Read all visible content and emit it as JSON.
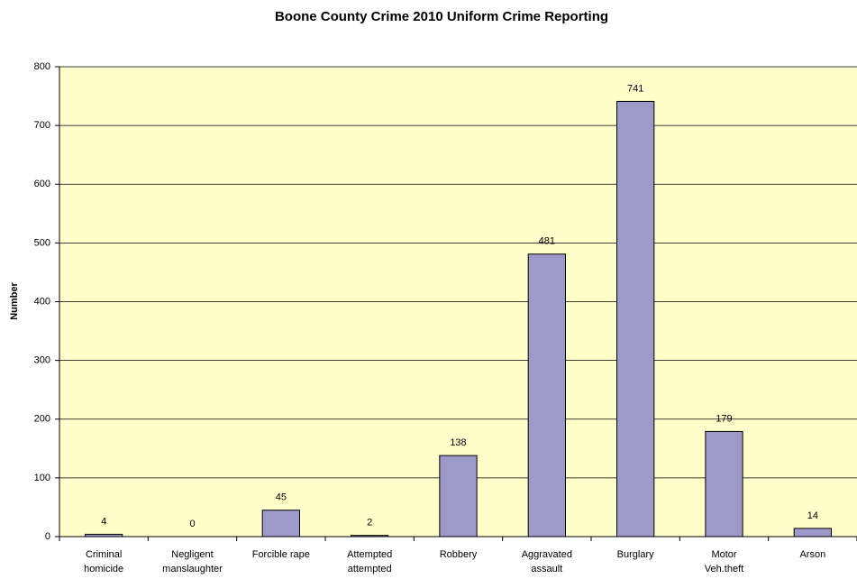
{
  "chart_data": {
    "type": "bar",
    "title": "Boone County Crime 2010 Uniform Crime Reporting",
    "y_label": "Number",
    "categories": [
      "Criminal\nhomicide",
      "Negligent\nmanslaughter",
      "Forcible rape",
      "Attempted\nattempted",
      "Robbery",
      "Aggravated\nassault",
      "Burglary",
      "Motor\nVeh.theft",
      "Arson"
    ],
    "values": [
      4,
      0,
      45,
      2,
      138,
      481,
      741,
      179,
      14
    ],
    "color": "#9d99c9",
    "background": "#ffffcc",
    "ylim": [
      0,
      800
    ],
    "yticks": [
      0,
      100,
      200,
      300,
      400,
      500,
      600,
      700,
      800
    ],
    "grid": true
  }
}
